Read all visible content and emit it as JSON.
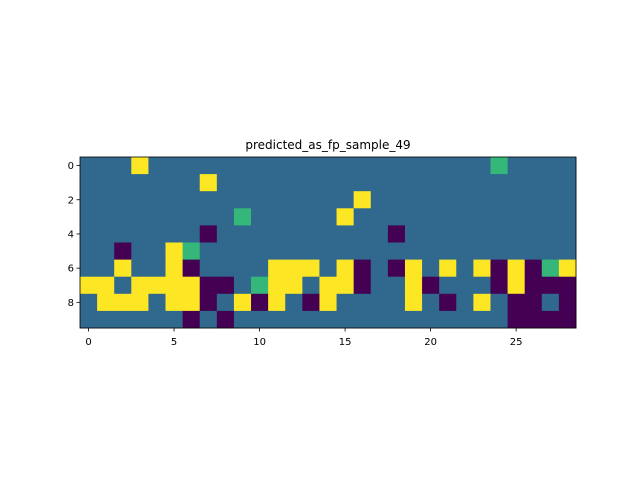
{
  "chart_data": {
    "type": "heatmap",
    "title": "predicted_as_fp_sample_49",
    "xlabel": "",
    "ylabel": "",
    "n_cols": 29,
    "n_rows": 10,
    "x_ticks": [
      0,
      5,
      10,
      15,
      20,
      25
    ],
    "y_ticks": [
      0,
      2,
      4,
      6,
      8
    ],
    "xlim": [
      -0.5,
      28.5
    ],
    "ylim": [
      9.5,
      -0.5
    ],
    "colormap": "viridis",
    "legend": "none",
    "grid": false,
    "palette": {
      "0": "#440154",
      "1": "#31688e",
      "2": "#35b779",
      "3": "#fde725"
    },
    "values": [
      [
        1,
        1,
        1,
        3,
        1,
        1,
        1,
        1,
        1,
        1,
        1,
        1,
        1,
        1,
        1,
        1,
        1,
        1,
        1,
        1,
        1,
        1,
        1,
        1,
        2,
        1,
        1,
        1,
        1
      ],
      [
        1,
        1,
        1,
        1,
        1,
        1,
        1,
        3,
        1,
        1,
        1,
        1,
        1,
        1,
        1,
        1,
        1,
        1,
        1,
        1,
        1,
        1,
        1,
        1,
        1,
        1,
        1,
        1,
        1
      ],
      [
        1,
        1,
        1,
        1,
        1,
        1,
        1,
        1,
        1,
        1,
        1,
        1,
        1,
        1,
        1,
        1,
        3,
        1,
        1,
        1,
        1,
        1,
        1,
        1,
        1,
        1,
        1,
        1,
        1
      ],
      [
        1,
        1,
        1,
        1,
        1,
        1,
        1,
        1,
        1,
        2,
        1,
        1,
        1,
        1,
        1,
        3,
        1,
        1,
        1,
        1,
        1,
        1,
        1,
        1,
        1,
        1,
        1,
        1,
        1
      ],
      [
        1,
        1,
        1,
        1,
        1,
        1,
        1,
        0,
        1,
        1,
        1,
        1,
        1,
        1,
        1,
        1,
        1,
        1,
        0,
        1,
        1,
        1,
        1,
        1,
        1,
        1,
        1,
        1,
        1
      ],
      [
        1,
        1,
        0,
        1,
        1,
        3,
        2,
        1,
        1,
        1,
        1,
        1,
        1,
        1,
        1,
        1,
        1,
        1,
        1,
        1,
        1,
        1,
        1,
        1,
        1,
        1,
        1,
        1,
        1
      ],
      [
        1,
        1,
        3,
        1,
        1,
        3,
        0,
        1,
        1,
        1,
        1,
        3,
        3,
        3,
        1,
        3,
        0,
        1,
        0,
        3,
        1,
        3,
        1,
        3,
        0,
        3,
        0,
        2,
        3
      ],
      [
        3,
        3,
        1,
        3,
        3,
        3,
        3,
        0,
        0,
        1,
        2,
        3,
        3,
        1,
        3,
        3,
        0,
        1,
        1,
        3,
        0,
        1,
        1,
        1,
        0,
        3,
        0,
        0,
        0
      ],
      [
        1,
        3,
        3,
        3,
        1,
        3,
        3,
        0,
        1,
        3,
        0,
        3,
        1,
        0,
        3,
        1,
        1,
        1,
        1,
        3,
        1,
        0,
        1,
        3,
        1,
        0,
        0,
        1,
        0
      ],
      [
        1,
        1,
        1,
        1,
        1,
        1,
        0,
        1,
        0,
        1,
        1,
        1,
        1,
        1,
        1,
        1,
        1,
        1,
        1,
        1,
        1,
        1,
        1,
        1,
        1,
        0,
        0,
        0,
        0
      ]
    ]
  }
}
